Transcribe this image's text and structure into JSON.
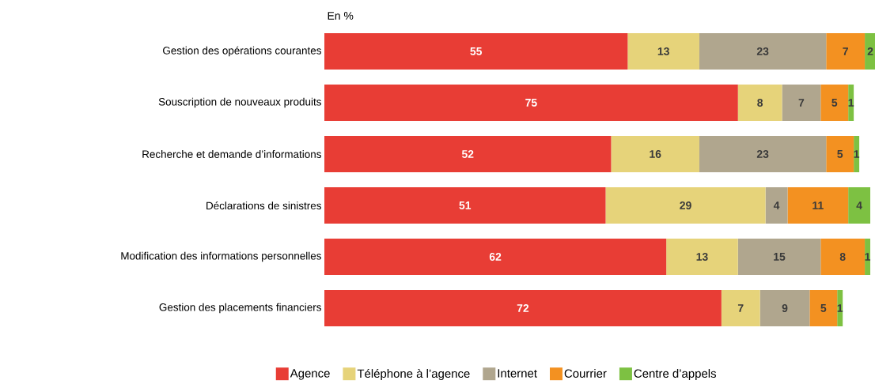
{
  "chart_data": {
    "type": "bar",
    "orientation": "horizontal",
    "stacked": true,
    "data_labels": true,
    "legend": "bottom",
    "tick_labels": "y",
    "xlim": [
      0,
      100
    ],
    "annotations": [
      "En %"
    ],
    "categories": [
      "Gestion des opérations courantes",
      "Souscription de nouveaux produits",
      "Recherche et demande d’informations",
      "Déclarations de sinistres",
      "Modification des informations personnelles",
      "Gestion des placements financiers"
    ],
    "series": [
      {
        "name": "Agence",
        "color": "#e83d35",
        "values": [
          55,
          75,
          52,
          51,
          62,
          72
        ]
      },
      {
        "name": "Téléphone à l’agence",
        "color": "#e6d37a",
        "values": [
          13,
          8,
          16,
          29,
          13,
          7
        ]
      },
      {
        "name": "Internet",
        "color": "#b0a68e",
        "values": [
          23,
          7,
          23,
          4,
          15,
          9
        ]
      },
      {
        "name": "Courrier",
        "color": "#f39121",
        "values": [
          7,
          5,
          5,
          11,
          8,
          5
        ]
      },
      {
        "name": "Centre d’appels",
        "color": "#7dc142",
        "values": [
          2,
          1,
          1,
          4,
          1,
          1
        ]
      }
    ]
  }
}
